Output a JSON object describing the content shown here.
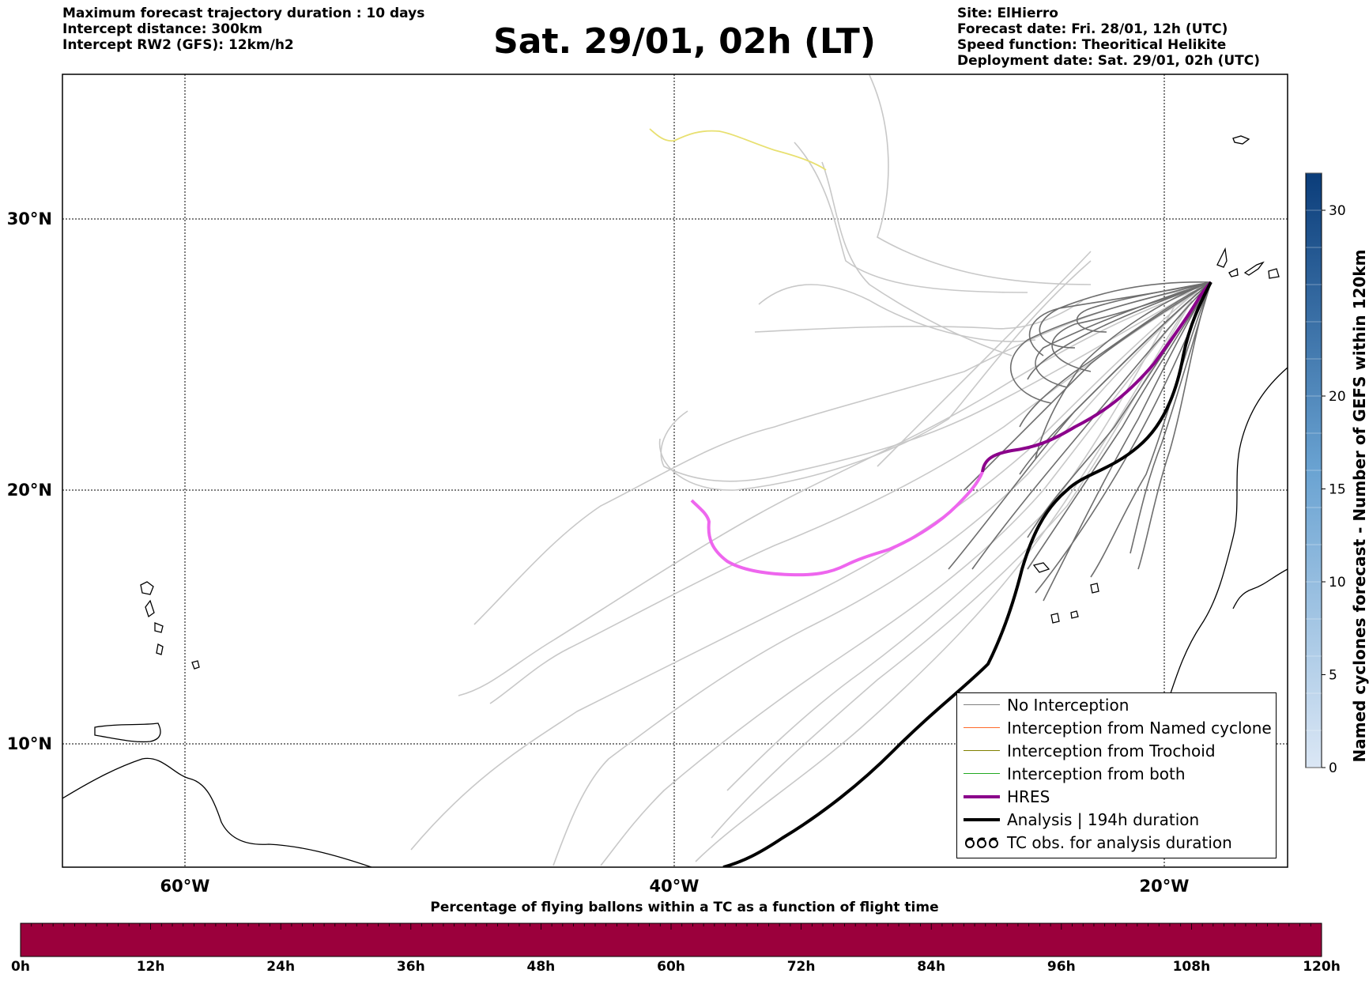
{
  "header": {
    "left": [
      "Maximum forecast trajectory duration : 10 days",
      "Intercept distance: 300km",
      "Intercept RW2 (GFS):  12km/h2"
    ],
    "title": "Sat. 29/01, 02h (LT)",
    "right": [
      "Site: ElHierro",
      "Forecast date: Fri. 28/01, 12h (UTC)",
      "Speed function: Theoritical Helikite",
      "Deployment date: Sat. 29/01, 02h (UTC)"
    ]
  },
  "map": {
    "lat_labels": [
      "30°N",
      "20°N",
      "10°N"
    ],
    "lon_labels": [
      "60°W",
      "40°W",
      "20°W"
    ],
    "grid": true
  },
  "legend": {
    "items": [
      {
        "label": "No Interception",
        "color": "#808080",
        "style": "line-thin"
      },
      {
        "label": "Interception from Named cyclone",
        "color": "#ff6a2a",
        "style": "line-thin"
      },
      {
        "label": "Interception from Trochoid",
        "color": "#808000",
        "style": "line-thin"
      },
      {
        "label": "Interception from both",
        "color": "#22aa22",
        "style": "line-thin"
      },
      {
        "label": "HRES",
        "color": "#8b008b",
        "style": "line-thick"
      },
      {
        "label": "Analysis | 194h duration",
        "color": "#000000",
        "style": "line-thick"
      },
      {
        "label": "TC obs. for analysis duration",
        "color": "#000000",
        "style": "tc-symbol"
      }
    ]
  },
  "colorbar_right": {
    "title": "Named cyclones forecast - Number of GEFS within 120km",
    "ticks": [
      "0",
      "5",
      "10",
      "15",
      "20",
      "30"
    ],
    "tick_values": [
      0,
      5,
      10,
      15,
      20,
      30
    ],
    "max": 32,
    "color_low": "#dbe7f5",
    "color_high": "#0b3d7a"
  },
  "bottom_bar": {
    "title": "Percentage of flying ballons within a TC as a function of flight time",
    "ticks": [
      "0h",
      "12h",
      "24h",
      "36h",
      "48h",
      "60h",
      "72h",
      "84h",
      "96h",
      "108h",
      "120h"
    ],
    "fill_color": "#9b003c"
  },
  "colors": {
    "hres_recent": "#8b008b",
    "hres_old": "#ee66ee",
    "analysis": "#000000",
    "ensemble_recent": "#6e6e6e",
    "ensemble_old": "#c8c8c8",
    "highlight_member": "#e8e070"
  }
}
